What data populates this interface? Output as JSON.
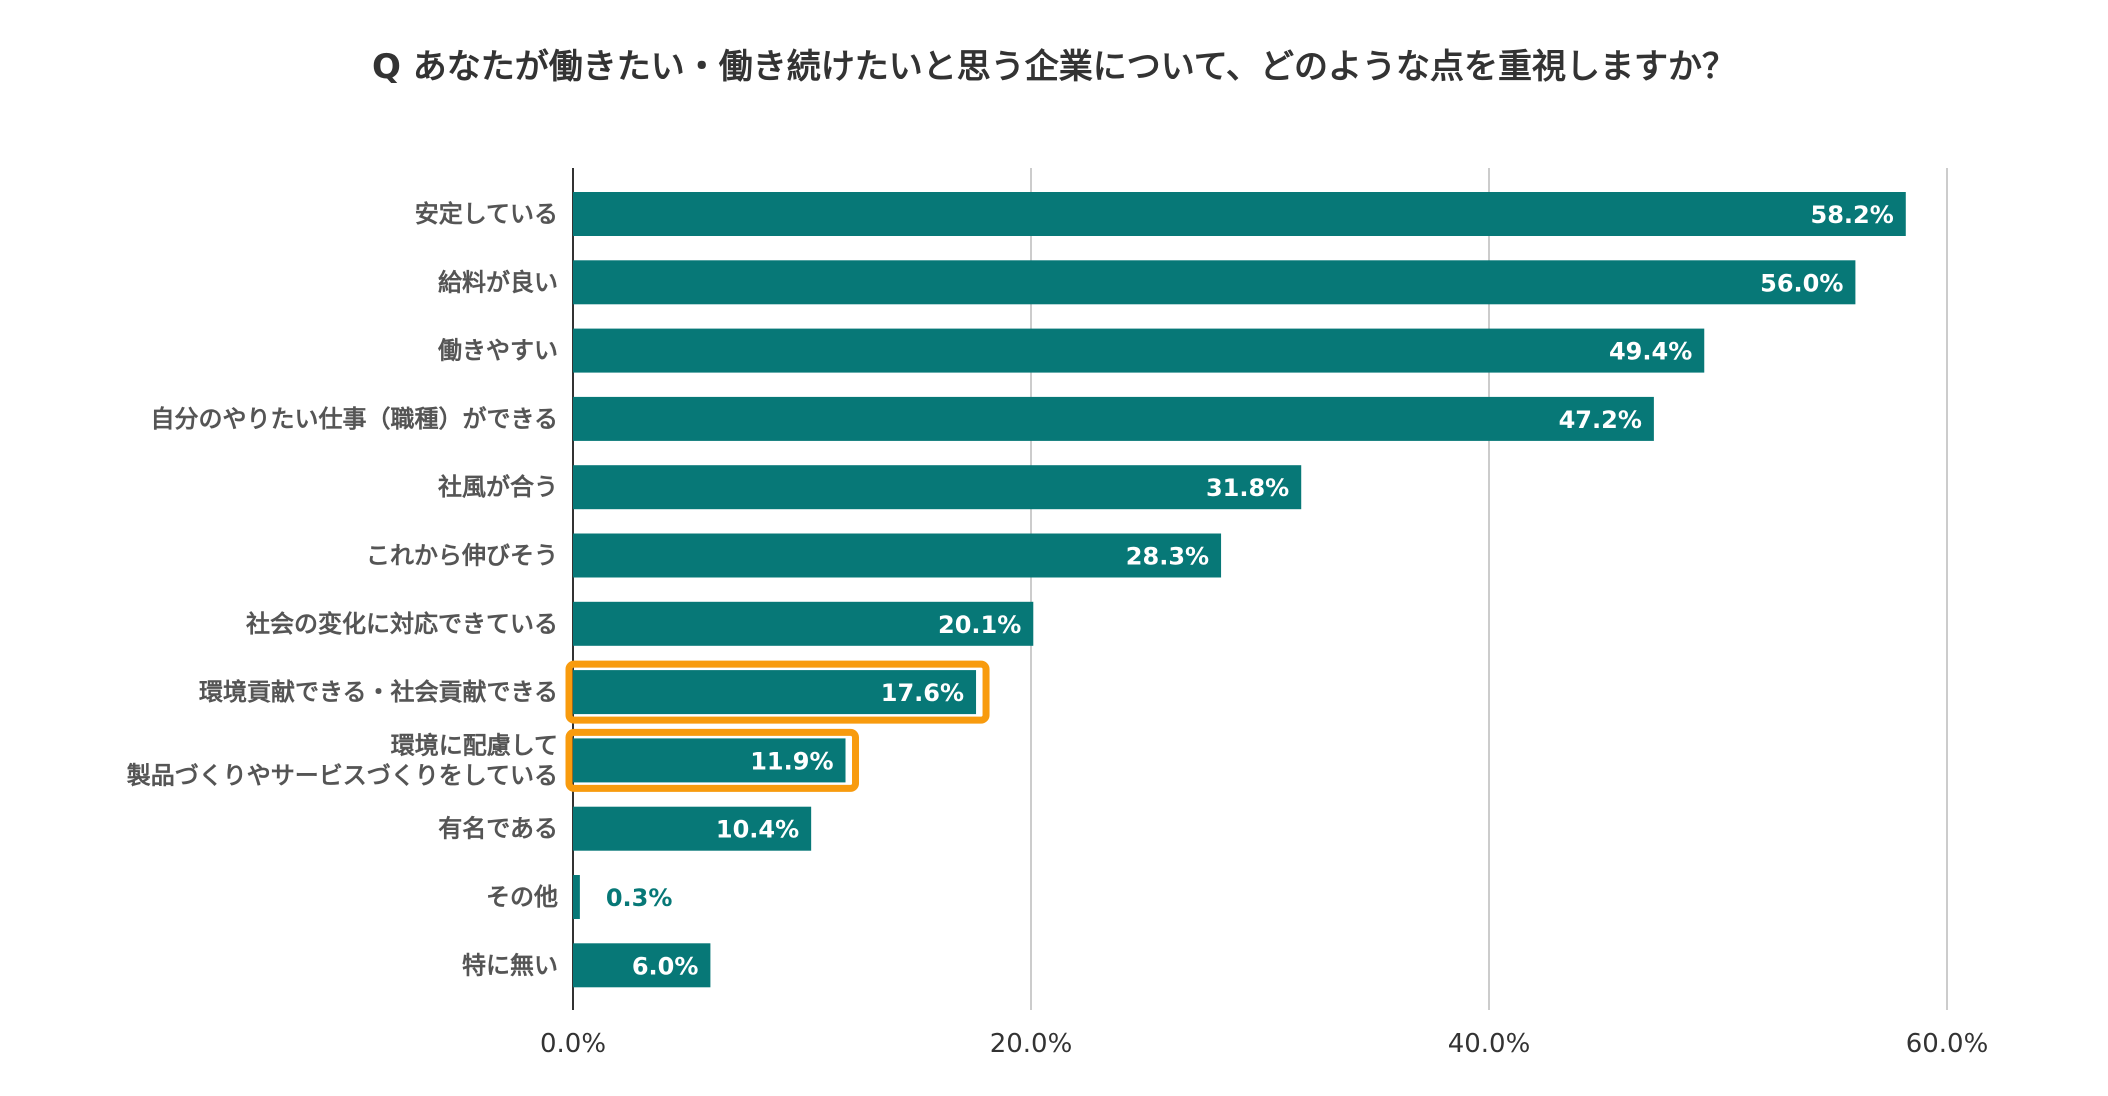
{
  "chart_data": {
    "type": "bar",
    "orientation": "horizontal",
    "title": "Q あなたが働きたい・働き続けたいと思う企業について、どのような点を重視しますか？",
    "xlabel": "",
    "ylabel": "",
    "xlim": [
      0,
      60
    ],
    "ticks": [
      "0.0%",
      "20.0%",
      "40.0%",
      "60.0%"
    ],
    "grid": true,
    "legend": "none",
    "bar_color": "#077877",
    "highlight_color": "#F89B0E",
    "categories": [
      [
        "安定している"
      ],
      [
        "給料が良い"
      ],
      [
        "働きやすい"
      ],
      [
        "自分のやりたい仕事（職種）ができる"
      ],
      [
        "社風が合う"
      ],
      [
        "これから伸びそう"
      ],
      [
        "社会の変化に対応できている"
      ],
      [
        "環境貢献できる・社会貢献できる"
      ],
      [
        "環境に配慮して",
        "製品づくりやサービスづくりをしている"
      ],
      [
        "有名である"
      ],
      [
        "その他"
      ],
      [
        "特に無い"
      ]
    ],
    "values": [
      58.2,
      56.0,
      49.4,
      47.2,
      31.8,
      28.3,
      20.1,
      17.6,
      11.9,
      10.4,
      0.3,
      6.0
    ],
    "value_labels": [
      "58.2%",
      "56.0%",
      "49.4%",
      "47.2%",
      "31.8%",
      "28.3%",
      "20.1%",
      "17.6%",
      "11.9%",
      "10.4%",
      "0.3%",
      "6.0%"
    ],
    "highlighted": [
      false,
      false,
      false,
      false,
      false,
      false,
      false,
      true,
      true,
      false,
      false,
      false
    ]
  }
}
